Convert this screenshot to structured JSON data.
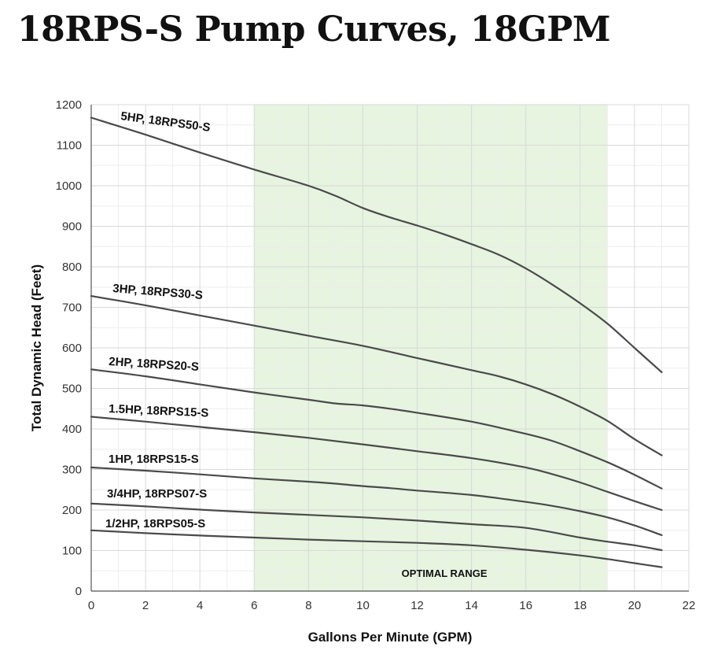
{
  "page": {
    "title": "18RPS-S Pump Curves, 18GPM"
  },
  "chart_data": {
    "type": "line",
    "xlabel": "Gallons Per Minute (GPM)",
    "ylabel": "Total Dynamic Head (Feet)",
    "xlim": [
      0,
      22
    ],
    "ylim": [
      0,
      1200
    ],
    "xticks": [
      0,
      2,
      4,
      6,
      8,
      10,
      12,
      14,
      16,
      18,
      20,
      22
    ],
    "yticks": [
      0,
      100,
      200,
      300,
      400,
      500,
      600,
      700,
      800,
      900,
      1000,
      1100,
      1200
    ],
    "grid": true,
    "line_color": "#4a4a4a",
    "optimal_range": {
      "label": "OPTIMAL RANGE",
      "x": [
        6,
        19
      ],
      "color": "#e6f4e0"
    },
    "series": [
      {
        "name": "5HP,  18RPS50-S",
        "x": [
          0,
          2,
          4,
          6,
          8,
          9,
          10,
          11,
          12,
          13,
          14,
          15,
          16,
          17,
          18,
          19,
          20,
          21
        ],
        "y": [
          1168,
          1126,
          1082,
          1040,
          1000,
          975,
          945,
          922,
          902,
          880,
          856,
          830,
          796,
          755,
          710,
          660,
          600,
          540
        ]
      },
      {
        "name": "3HP,  18RPS30-S",
        "x": [
          0,
          2,
          4,
          6,
          8,
          10,
          12,
          14,
          15,
          16,
          17,
          18,
          19,
          20,
          21
        ],
        "y": [
          728,
          705,
          680,
          655,
          630,
          605,
          575,
          545,
          530,
          510,
          485,
          455,
          420,
          375,
          335
        ]
      },
      {
        "name": "2HP, 18RPS20-S",
        "x": [
          0,
          2,
          4,
          6,
          8,
          9,
          10,
          11,
          12,
          14,
          16,
          17,
          18,
          19,
          20,
          21
        ],
        "y": [
          547,
          530,
          510,
          490,
          472,
          463,
          458,
          450,
          440,
          418,
          388,
          370,
          345,
          318,
          287,
          253
        ]
      },
      {
        "name": "1.5HP, 18RPS15-S",
        "x": [
          0,
          2,
          4,
          6,
          8,
          10,
          12,
          14,
          16,
          17,
          18,
          19,
          20,
          21
        ],
        "y": [
          430,
          418,
          405,
          392,
          378,
          362,
          345,
          328,
          305,
          288,
          268,
          245,
          222,
          200
        ]
      },
      {
        "name": "1HP, 18RPS15-S",
        "x": [
          0,
          2,
          4,
          6,
          8,
          9,
          10,
          11,
          12,
          14,
          16,
          17,
          18,
          19,
          20,
          21
        ],
        "y": [
          305,
          297,
          288,
          278,
          270,
          265,
          259,
          254,
          248,
          237,
          220,
          210,
          197,
          182,
          162,
          138
        ]
      },
      {
        "name": "3/4HP, 18RPS07-S",
        "x": [
          0,
          2,
          4,
          6,
          8,
          10,
          12,
          14,
          16,
          18,
          19,
          20,
          21
        ],
        "y": [
          216,
          209,
          201,
          194,
          188,
          182,
          174,
          165,
          156,
          132,
          122,
          113,
          101
        ]
      },
      {
        "name": "1/2HP, 18RPS05-S",
        "x": [
          0,
          2,
          4,
          6,
          8,
          10,
          12,
          14,
          16,
          18,
          19,
          20,
          21
        ],
        "y": [
          150,
          143,
          137,
          132,
          127,
          123,
          119,
          113,
          102,
          88,
          79,
          69,
          59
        ]
      }
    ]
  }
}
